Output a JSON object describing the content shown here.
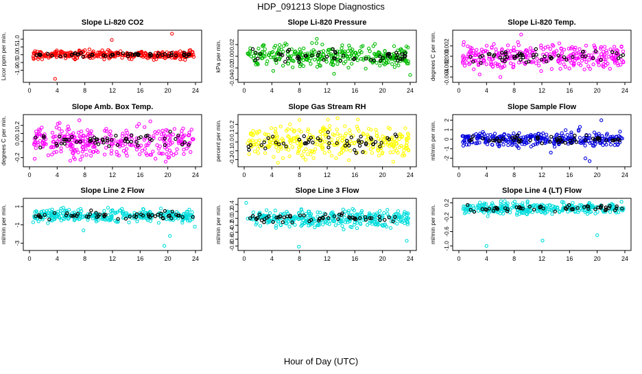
{
  "figure": {
    "title": "HDP_091213  Slope Diagnostics",
    "xlabel": "Hour of Day (UTC)"
  },
  "chart_data": [
    {
      "type": "scatter",
      "title": "Slope Li-820 CO2",
      "ylabel": "Licor ppm per min.",
      "color": "#ff0000",
      "xlim": [
        0,
        24
      ],
      "xticks": [
        0,
        4,
        8,
        12,
        16,
        20,
        24
      ],
      "ylim": [
        -1.6,
        1.4
      ],
      "yticks": [
        -1.0,
        -0.5,
        0.0,
        0.5,
        1.0
      ],
      "ytick_labels": [
        "-1.0",
        "-0.5",
        "0.0",
        "0.5",
        "1.0"
      ],
      "spread": 0.13,
      "outliers": [
        [
          3.7,
          -1.55
        ],
        [
          11.9,
          0.95
        ],
        [
          20.6,
          1.35
        ],
        [
          10.8,
          -0.3
        ]
      ]
    },
    {
      "type": "scatter",
      "title": "Slope Li-820 Pressure",
      "ylabel": "kPa per min.",
      "color": "#00bb00",
      "xlim": [
        0,
        24
      ],
      "xticks": [
        0,
        4,
        8,
        12,
        16,
        20,
        24
      ],
      "ylim": [
        -0.04,
        0.04
      ],
      "yticks": [
        -0.04,
        -0.02,
        0.0,
        0.02
      ],
      "ytick_labels": [
        "-0.04",
        "-0.02",
        "0.00",
        "0.02"
      ],
      "spread": 0.009,
      "outliers": [
        [
          4.2,
          -0.025
        ],
        [
          10.5,
          0.03
        ],
        [
          24,
          -0.032
        ],
        [
          13,
          -0.03
        ]
      ]
    },
    {
      "type": "scatter",
      "title": "Slope Li-820 Temp.",
      "ylabel": "degrees C per min.",
      "color": "#ff00ff",
      "xlim": [
        0,
        24
      ],
      "xticks": [
        0,
        4,
        8,
        12,
        16,
        20,
        24
      ],
      "ylim": [
        -0.0045,
        0.0045
      ],
      "yticks": [
        -0.004,
        -0.002,
        0.0,
        0.002
      ],
      "ytick_labels": [
        "-0.004",
        "-0.002",
        "0.000",
        "0.002"
      ],
      "spread": 0.0012,
      "outliers": [
        [
          9,
          0.0042
        ],
        [
          3,
          -0.0035
        ],
        [
          6,
          -0.004
        ]
      ]
    },
    {
      "type": "scatter",
      "title": "Slope Amb. Box Temp.",
      "ylabel": "degrees C per min.",
      "color": "#ff00ff",
      "xlim": [
        0,
        24
      ],
      "xticks": [
        0,
        4,
        8,
        12,
        16,
        20,
        24
      ],
      "ylim": [
        -0.28,
        0.3
      ],
      "yticks": [
        -0.2,
        0.0,
        0.1,
        0.2
      ],
      "ytick_labels": [
        "-0.2",
        "0.0",
        "0.1",
        "0.2"
      ],
      "spread": 0.09,
      "outliers": [
        [
          19.7,
          -0.25
        ],
        [
          4.1,
          0.22
        ]
      ]
    },
    {
      "type": "scatter",
      "title": "Slope Gas Stream RH",
      "ylabel": "percent per min.",
      "color": "#ffff00",
      "xlim": [
        0,
        24
      ],
      "xticks": [
        0,
        4,
        8,
        12,
        16,
        20,
        24
      ],
      "ylim": [
        -0.25,
        0.28
      ],
      "yticks": [
        -0.2,
        -0.1,
        0.0,
        0.1,
        0.2
      ],
      "ytick_labels": [
        "-0.2",
        "-0.1",
        "0.0",
        "0.1",
        "0.2"
      ],
      "spread": 0.09,
      "outliers": [
        [
          8,
          0.25
        ],
        [
          13.5,
          0.27
        ]
      ]
    },
    {
      "type": "scatter",
      "title": "Slope Sample Flow",
      "ylabel": "ml/min per min.",
      "color": "#0000dd",
      "xlim": [
        0,
        24
      ],
      "xticks": [
        0,
        4,
        8,
        12,
        16,
        20,
        24
      ],
      "ylim": [
        -2.6,
        2.3
      ],
      "yticks": [
        -2,
        -1,
        0,
        1,
        2
      ],
      "ytick_labels": [
        "-2",
        "-1",
        "0",
        "1",
        "2"
      ],
      "spread": 0.35,
      "outliers": [
        [
          20.6,
          2.0
        ],
        [
          18.9,
          -2.3
        ],
        [
          18.3,
          -2.0
        ],
        [
          17.5,
          1.3
        ],
        [
          13.3,
          -1.4
        ]
      ]
    },
    {
      "type": "scatter",
      "title": "Slope Line 2 Flow",
      "ylabel": "ml/min per min.",
      "color": "#00dddd",
      "xlim": [
        0,
        24
      ],
      "xticks": [
        0,
        4,
        8,
        12,
        16,
        20,
        24
      ],
      "ylim": [
        -3.5,
        1.6
      ],
      "yticks": [
        -3,
        -1,
        1
      ],
      "ytick_labels": [
        "-3",
        "-1",
        "1"
      ],
      "spread": 0.35,
      "outliers": [
        [
          19.5,
          -3.3
        ],
        [
          7.8,
          -1.6
        ],
        [
          20.3,
          -2.2
        ],
        [
          23.9,
          -1.2
        ]
      ]
    },
    {
      "type": "scatter",
      "title": "Slope Line 3 Flow",
      "ylabel": "ml/min per min.",
      "color": "#00dddd",
      "xlim": [
        0,
        24
      ],
      "xticks": [
        0,
        4,
        8,
        12,
        16,
        20,
        24
      ],
      "ylim": [
        -0.85,
        0.5
      ],
      "yticks": [
        -0.8,
        -0.6,
        -0.4,
        -0.2,
        0.0,
        0.2,
        0.4
      ],
      "ytick_labels": [
        "-0.8",
        "-0.6",
        "-0.4",
        "-0.2",
        "0.0",
        "0.2",
        "0.4"
      ],
      "spread": 0.12,
      "outliers": [
        [
          7.9,
          -0.82
        ],
        [
          23.5,
          -0.65
        ],
        [
          0.3,
          0.45
        ]
      ]
    },
    {
      "type": "scatter",
      "title": "Slope Line 4 (LT) Flow",
      "ylabel": "ml/min per min.",
      "color": "#00dddd",
      "xlim": [
        0,
        24
      ],
      "xticks": [
        0,
        4,
        8,
        12,
        16,
        20,
        24
      ],
      "ylim": [
        -1.05,
        0.25
      ],
      "yticks": [
        -1.0,
        -0.6,
        -0.2,
        0.2
      ],
      "ytick_labels": [
        "-1.0",
        "-0.6",
        "-0.2",
        "0.2"
      ],
      "spread": 0.08,
      "outliers": [
        [
          4.0,
          -1.0
        ],
        [
          12.1,
          -0.85
        ],
        [
          20.0,
          -0.7
        ]
      ]
    }
  ]
}
